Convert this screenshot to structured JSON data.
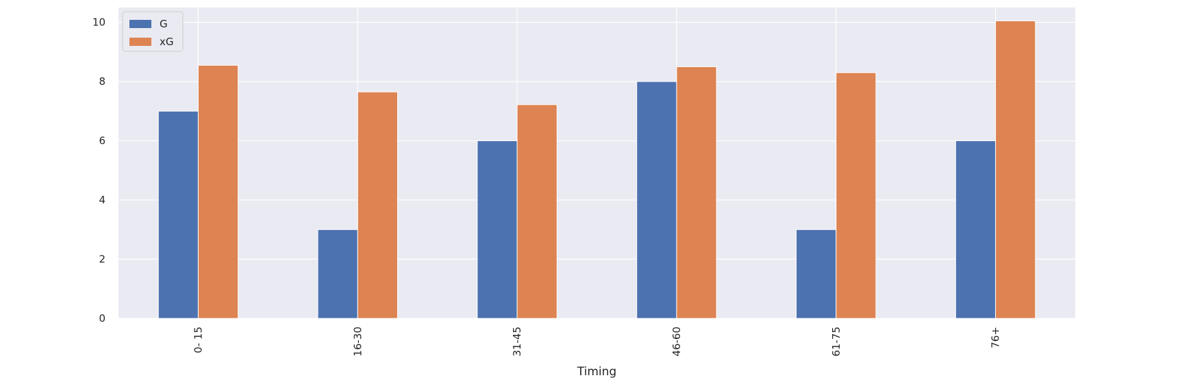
{
  "chart_data": {
    "type": "bar",
    "categories": [
      "0- 15",
      "16-30",
      "31-45",
      "46-60",
      "61-75",
      "76+"
    ],
    "series": [
      {
        "name": "G",
        "color": "#4c72b0",
        "values": [
          7,
          3,
          6,
          8,
          3,
          6
        ]
      },
      {
        "name": "xG",
        "color": "#dd8452",
        "values": [
          8.55,
          7.65,
          7.22,
          8.5,
          8.3,
          10.05
        ]
      }
    ],
    "title": "",
    "xlabel": "Timing",
    "ylabel": "",
    "ylim": [
      0,
      10.5
    ],
    "yticks": [
      0,
      2,
      4,
      6,
      8,
      10
    ],
    "grid": true,
    "legend_position": "top-left",
    "background": "#eaeaf2"
  }
}
